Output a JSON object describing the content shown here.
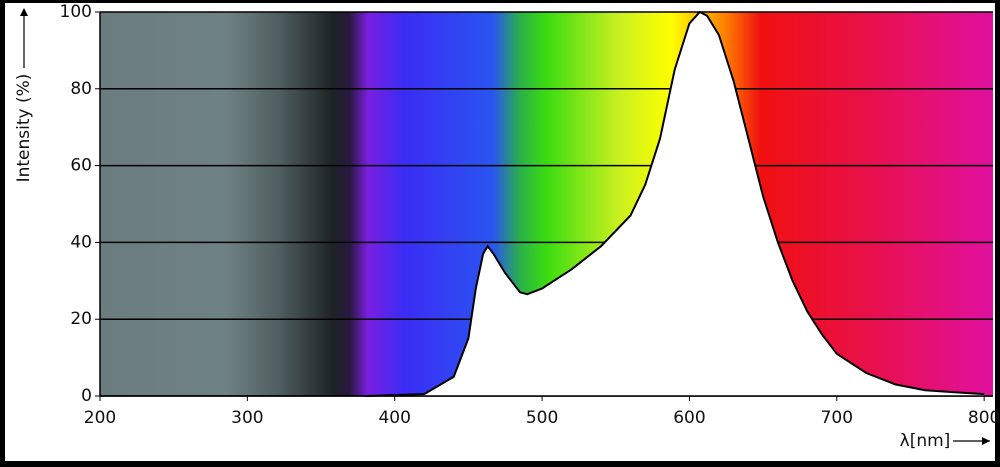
{
  "chart_data": {
    "type": "area",
    "x_label": "λ[nm]",
    "y_label": "Intensity (%)",
    "x": [
      380,
      420,
      440,
      450,
      455,
      460,
      463,
      467,
      475,
      485,
      490,
      500,
      520,
      540,
      560,
      570,
      580,
      590,
      600,
      607,
      612,
      620,
      630,
      640,
      650,
      660,
      670,
      680,
      690,
      700,
      720,
      740,
      760,
      780,
      800
    ],
    "values": [
      0,
      0.5,
      5,
      15,
      28,
      37,
      39,
      37,
      32,
      27,
      26.5,
      28,
      33,
      39,
      47,
      55,
      67,
      85,
      97,
      100,
      99,
      94,
      82,
      67,
      52,
      40,
      30,
      22,
      16,
      11,
      6,
      3,
      1.5,
      1,
      0.5
    ],
    "color": "#ffffff",
    "xlim": [
      200,
      806
    ],
    "ylim": [
      0,
      100
    ],
    "xticks": [
      200,
      300,
      400,
      500,
      600,
      700,
      800
    ],
    "yticks": [
      0,
      20,
      40,
      60,
      80,
      100
    ],
    "grid": true
  }
}
